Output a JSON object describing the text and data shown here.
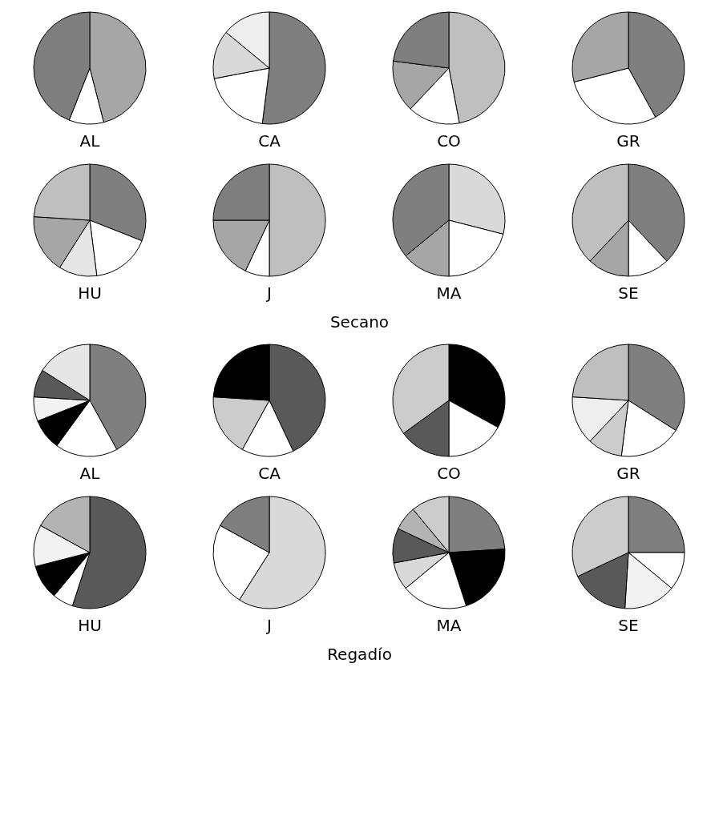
{
  "chart_data": [
    {
      "type": "pie",
      "title": "AL",
      "categories": [
        null,
        null,
        null
      ],
      "values": [
        46,
        10,
        44
      ],
      "colors": [
        "#a6a6a6",
        "#ffffff",
        "#7f7f7f"
      ]
    },
    {
      "type": "pie",
      "title": "CA",
      "categories": [
        null,
        null,
        null,
        null
      ],
      "values": [
        52,
        20,
        14,
        14
      ],
      "colors": [
        "#7f7f7f",
        "#ffffff",
        "#d9d9d9",
        "#eeeeee"
      ]
    },
    {
      "type": "pie",
      "title": "CO",
      "categories": [
        null,
        null,
        null,
        null
      ],
      "values": [
        47,
        15,
        15,
        23
      ],
      "colors": [
        "#bfbfbf",
        "#ffffff",
        "#a6a6a6",
        "#7f7f7f"
      ]
    },
    {
      "type": "pie",
      "title": "GR",
      "categories": [
        null,
        null,
        null
      ],
      "values": [
        42,
        29,
        29
      ],
      "colors": [
        "#7f7f7f",
        "#ffffff",
        "#a6a6a6"
      ]
    },
    {
      "type": "pie",
      "title": "HU",
      "categories": [
        null,
        null,
        null,
        null,
        null
      ],
      "values": [
        31,
        17,
        11,
        17,
        24
      ],
      "colors": [
        "#7f7f7f",
        "#ffffff",
        "#e6e6e6",
        "#a6a6a6",
        "#bfbfbf"
      ]
    },
    {
      "type": "pie",
      "title": "J",
      "categories": [
        null,
        null,
        null,
        null
      ],
      "values": [
        50,
        7,
        18,
        25
      ],
      "colors": [
        "#bfbfbf",
        "#ffffff",
        "#a6a6a6",
        "#7f7f7f"
      ]
    },
    {
      "type": "pie",
      "title": "MA",
      "categories": [
        null,
        null,
        null,
        null
      ],
      "values": [
        29,
        21,
        14,
        36
      ],
      "colors": [
        "#d9d9d9",
        "#ffffff",
        "#a6a6a6",
        "#7f7f7f"
      ]
    },
    {
      "type": "pie",
      "title": "SE",
      "categories": [
        null,
        null,
        null,
        null
      ],
      "values": [
        38,
        12,
        12,
        38
      ],
      "colors": [
        "#7f7f7f",
        "#ffffff",
        "#a6a6a6",
        "#bfbfbf"
      ],
      "annotations": [
        "Secano"
      ]
    },
    {
      "type": "pie",
      "title": "AL",
      "categories": [
        null,
        null,
        null,
        null,
        null,
        null
      ],
      "values": [
        42,
        18,
        9,
        7,
        8,
        16
      ],
      "colors": [
        "#7f7f7f",
        "#ffffff",
        "#000000",
        "#f2f2f2",
        "#595959",
        "#e6e6e6"
      ]
    },
    {
      "type": "pie",
      "title": "CA",
      "categories": [
        null,
        null,
        null,
        null
      ],
      "values": [
        43,
        15,
        18,
        24
      ],
      "colors": [
        "#595959",
        "#ffffff",
        "#cccccc",
        "#000000"
      ]
    },
    {
      "type": "pie",
      "title": "CO",
      "categories": [
        null,
        null,
        null,
        null
      ],
      "values": [
        33,
        17,
        15,
        35
      ],
      "colors": [
        "#000000",
        "#ffffff",
        "#595959",
        "#cccccc"
      ]
    },
    {
      "type": "pie",
      "title": "GR",
      "categories": [
        null,
        null,
        null,
        null,
        null
      ],
      "values": [
        34,
        18,
        10,
        14,
        24
      ],
      "colors": [
        "#7f7f7f",
        "#ffffff",
        "#cccccc",
        "#eeeeee",
        "#bfbfbf"
      ]
    },
    {
      "type": "pie",
      "title": "HU",
      "categories": [
        null,
        null,
        null,
        null,
        null
      ],
      "values": [
        55,
        6,
        10,
        12,
        17
      ],
      "colors": [
        "#595959",
        "#ffffff",
        "#000000",
        "#f2f2f2",
        "#b3b3b3"
      ]
    },
    {
      "type": "pie",
      "title": "J",
      "categories": [
        null,
        null,
        null
      ],
      "values": [
        59,
        24,
        17
      ],
      "colors": [
        "#d9d9d9",
        "#ffffff",
        "#7f7f7f"
      ]
    },
    {
      "type": "pie",
      "title": "MA",
      "categories": [
        null,
        null,
        null,
        null,
        null,
        null,
        null
      ],
      "values": [
        24,
        21,
        19,
        8,
        10,
        7,
        11
      ],
      "colors": [
        "#7f7f7f",
        "#000000",
        "#ffffff",
        "#d9d9d9",
        "#595959",
        "#b3b3b3",
        "#cccccc"
      ]
    },
    {
      "type": "pie",
      "title": "SE",
      "categories": [
        null,
        null,
        null,
        null,
        null
      ],
      "values": [
        25,
        11,
        15,
        17,
        32
      ],
      "colors": [
        "#7f7f7f",
        "#ffffff",
        "#f2f2f2",
        "#595959",
        "#cccccc"
      ],
      "annotations": [
        "Regadío"
      ]
    }
  ]
}
